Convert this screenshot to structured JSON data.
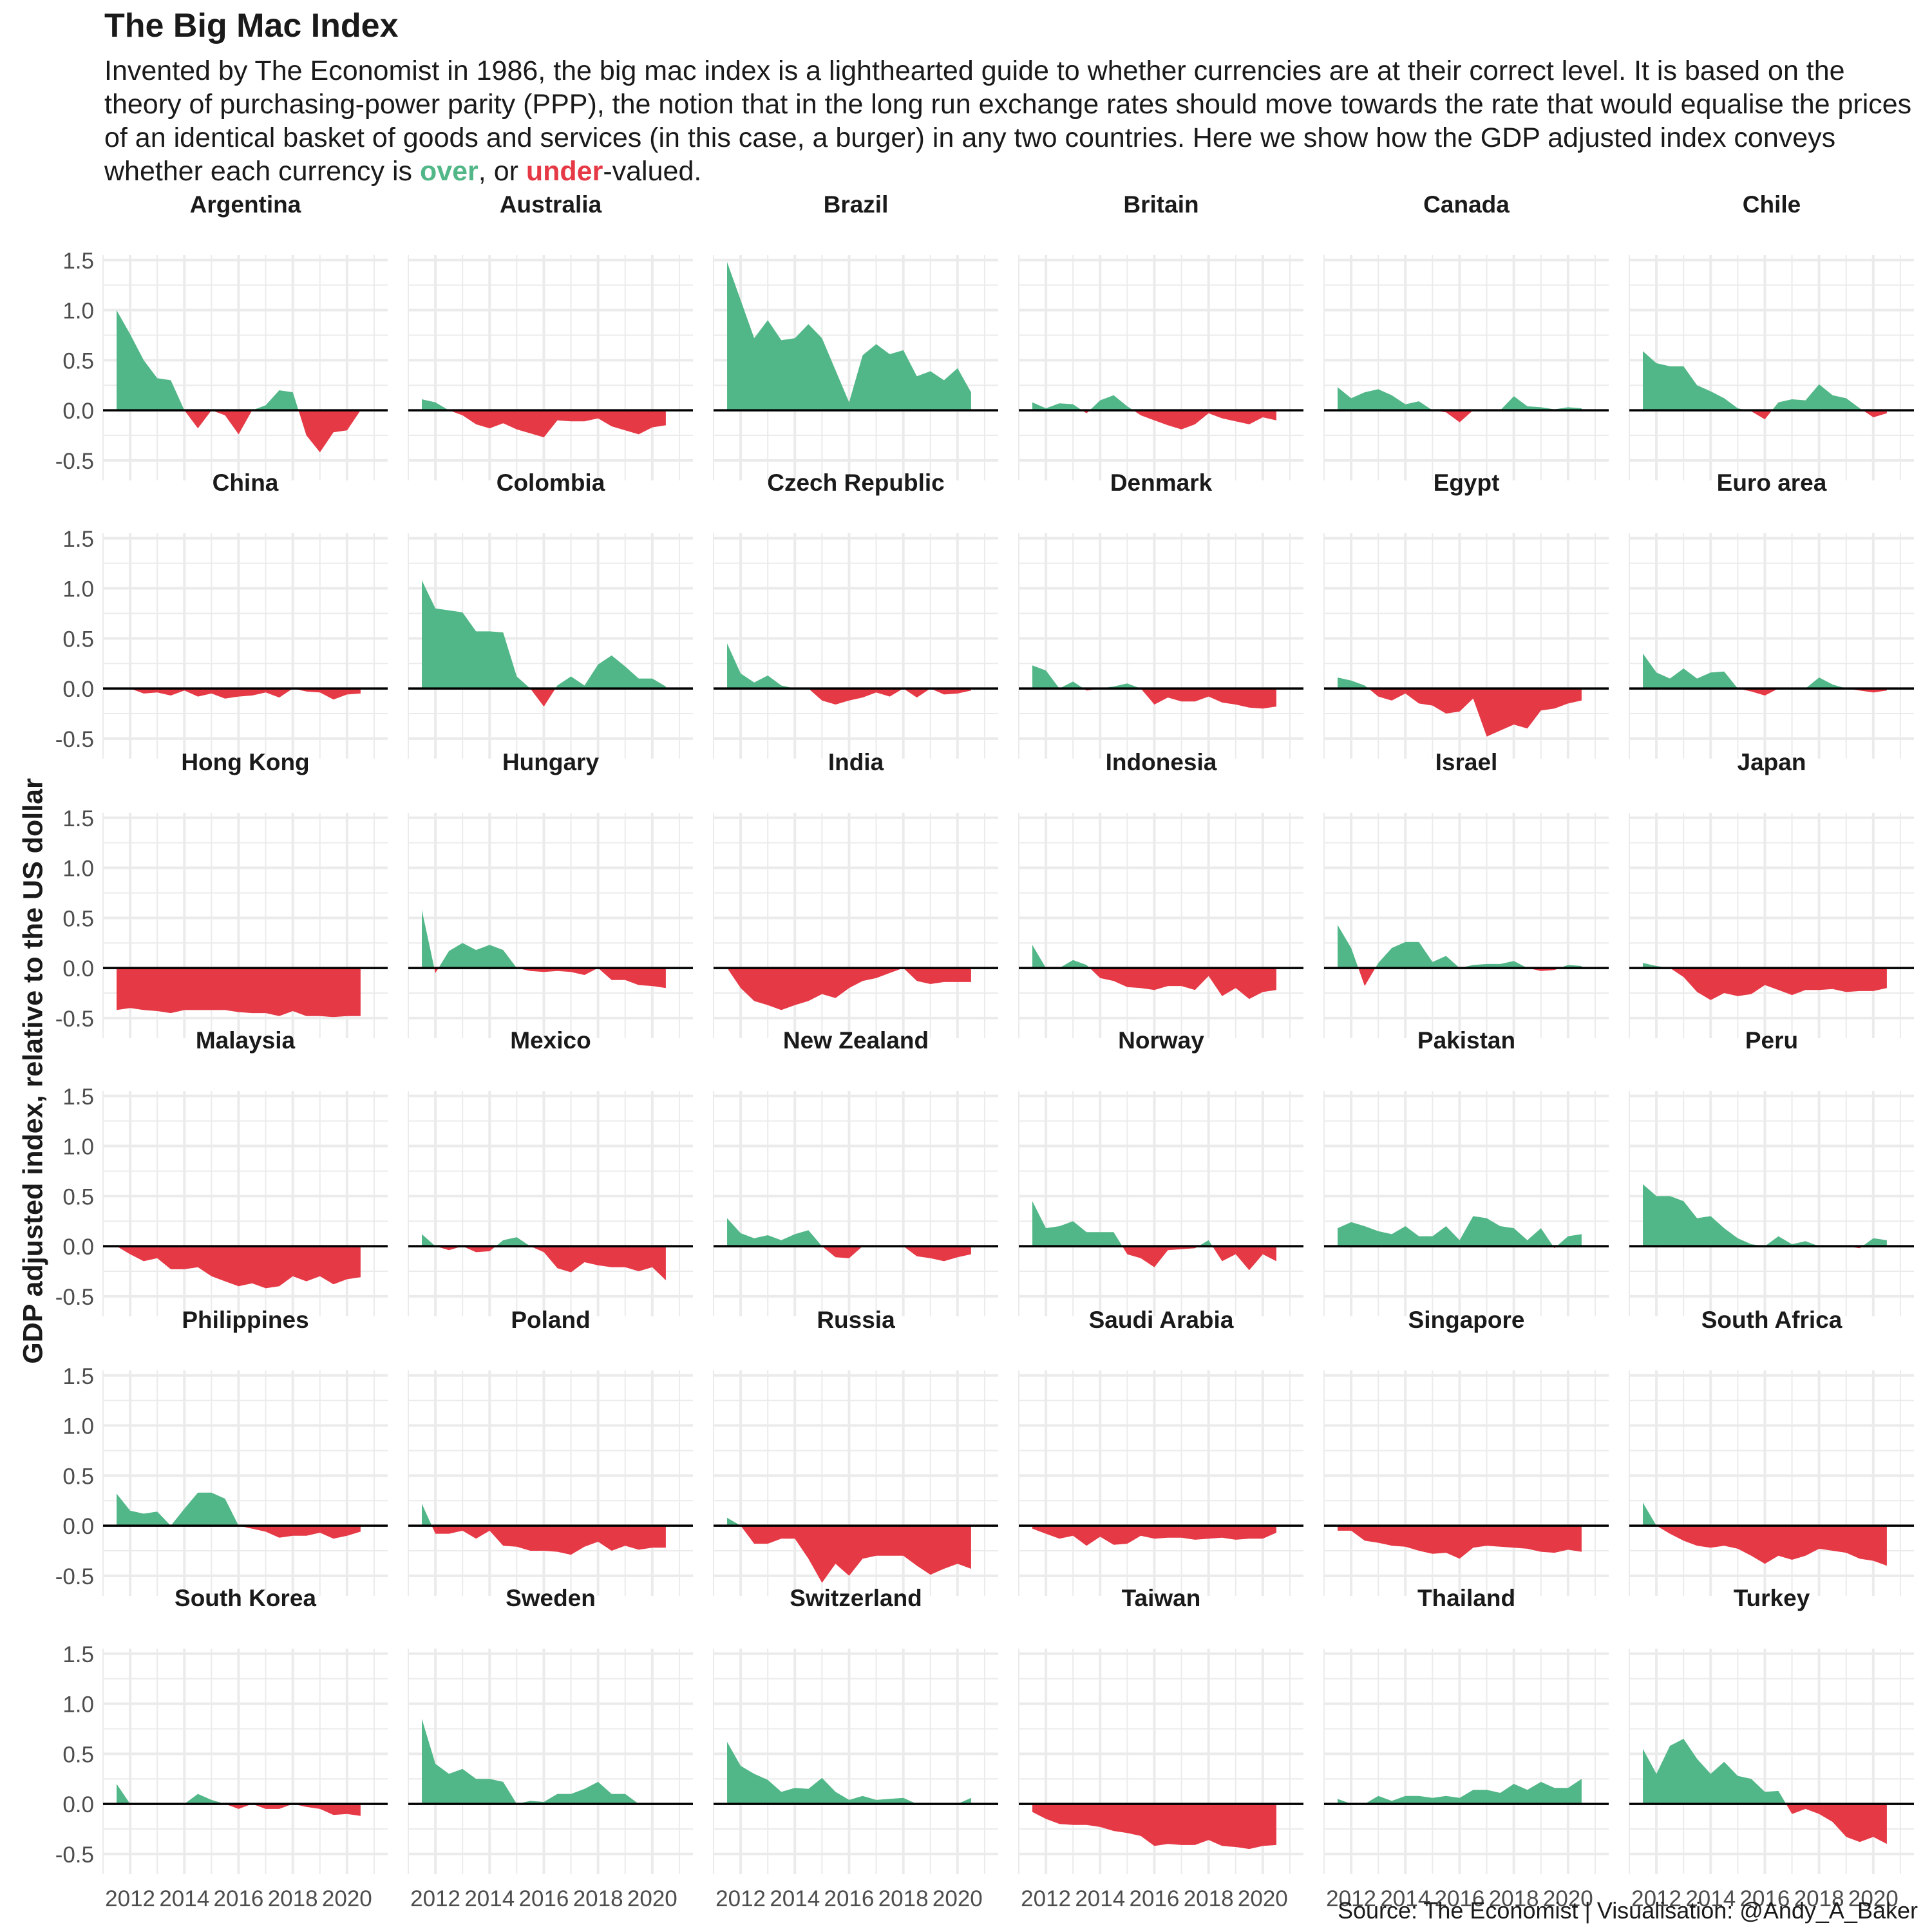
{
  "title": "The Big Mac Index",
  "subtitle": {
    "before": "Invented by The Economist in 1986, the big mac index is a lighthearted guide to whether currencies are at their correct level. It is based on the theory of purchasing-power parity (PPP), the notion that in the long run exchange rates should move towards the rate that would equalise the prices of an identical basket of goods and services (in this case, a burger) in any two countries. Here we show how the GDP adjusted index conveys whether each currency is ",
    "over": "over",
    "middle": ", or ",
    "under": "under",
    "after": "-valued."
  },
  "caption": "Source: The Economist | Visualisation: @Andy_A_Baker",
  "colors": {
    "over": "#52b788",
    "under": "#e63946",
    "grid": "#ebebeb",
    "zero_line": "#000000",
    "text": "#1a1a1a",
    "tick_text": "#4d4d4d"
  },
  "chart_data": {
    "type": "area",
    "facet": "wrap",
    "ylabel": "GDP adjusted index, relative to the US dollar",
    "xlabel": "",
    "xlim": [
      2011.0,
      2021.5
    ],
    "ylim": [
      -0.7,
      1.55
    ],
    "x_ticks": [
      2012,
      2014,
      2016,
      2018,
      2020
    ],
    "y_ticks": [
      -0.5,
      0.0,
      0.5,
      1.0,
      1.5
    ],
    "y_tick_labels": [
      "-0.5",
      "0.0",
      "0.5",
      "1.0",
      "1.5"
    ],
    "grid": true,
    "x": [
      2011.5,
      2012.0,
      2012.5,
      2013.0,
      2013.5,
      2014.0,
      2014.5,
      2015.0,
      2015.5,
      2016.0,
      2016.5,
      2017.0,
      2017.5,
      2018.0,
      2018.5,
      2019.0,
      2019.5,
      2020.0,
      2020.5
    ],
    "series": [
      {
        "name": "Argentina",
        "values": [
          1.0,
          0.76,
          0.5,
          0.32,
          0.3,
          0.0,
          -0.18,
          0.0,
          -0.05,
          -0.24,
          0.0,
          0.05,
          0.2,
          0.18,
          -0.25,
          -0.42,
          -0.22,
          -0.2,
          0.0
        ]
      },
      {
        "name": "Australia",
        "values": [
          0.11,
          0.08,
          0.0,
          -0.05,
          -0.14,
          -0.18,
          -0.13,
          -0.19,
          -0.23,
          -0.27,
          -0.1,
          -0.11,
          -0.11,
          -0.08,
          -0.16,
          -0.2,
          -0.24,
          -0.17,
          -0.15
        ]
      },
      {
        "name": "Brazil",
        "values": [
          1.48,
          1.1,
          0.72,
          0.9,
          0.7,
          0.72,
          0.86,
          0.72,
          0.4,
          0.08,
          0.55,
          0.66,
          0.56,
          0.6,
          0.34,
          0.39,
          0.3,
          0.42,
          0.18
        ]
      },
      {
        "name": "Britain",
        "values": [
          0.08,
          0.02,
          0.07,
          0.06,
          -0.03,
          0.1,
          0.15,
          0.04,
          -0.05,
          -0.1,
          -0.15,
          -0.19,
          -0.14,
          -0.03,
          -0.08,
          -0.11,
          -0.14,
          -0.07,
          -0.1
        ]
      },
      {
        "name": "Canada",
        "values": [
          0.23,
          0.12,
          0.18,
          0.21,
          0.15,
          0.06,
          0.09,
          0.0,
          -0.02,
          -0.12,
          0.0,
          0.0,
          0.0,
          0.14,
          0.04,
          0.03,
          0.01,
          0.03,
          0.02
        ]
      },
      {
        "name": "Chile",
        "values": [
          0.59,
          0.47,
          0.44,
          0.44,
          0.25,
          0.19,
          0.12,
          0.02,
          -0.01,
          -0.09,
          0.08,
          0.11,
          0.1,
          0.26,
          0.15,
          0.12,
          0.02,
          -0.07,
          -0.03
        ]
      },
      {
        "name": "China",
        "values": [
          0.0,
          0.0,
          -0.05,
          -0.04,
          -0.07,
          -0.02,
          -0.08,
          -0.05,
          -0.1,
          -0.08,
          -0.07,
          -0.04,
          -0.09,
          0.0,
          -0.03,
          -0.04,
          -0.11,
          -0.06,
          -0.05
        ]
      },
      {
        "name": "Colombia",
        "values": [
          1.08,
          0.8,
          0.78,
          0.76,
          0.57,
          0.57,
          0.56,
          0.12,
          0.0,
          -0.18,
          0.03,
          0.12,
          0.03,
          0.24,
          0.33,
          0.22,
          0.1,
          0.1,
          0.02
        ]
      },
      {
        "name": "Czech Republic",
        "values": [
          0.45,
          0.15,
          0.06,
          0.13,
          0.03,
          0.0,
          0.0,
          -0.12,
          -0.16,
          -0.12,
          -0.09,
          -0.04,
          -0.08,
          0.0,
          -0.09,
          0.0,
          -0.06,
          -0.05,
          -0.02
        ]
      },
      {
        "name": "Denmark",
        "values": [
          0.23,
          0.18,
          0.0,
          0.07,
          -0.02,
          0.0,
          0.02,
          0.05,
          0.0,
          -0.16,
          -0.09,
          -0.13,
          -0.13,
          -0.08,
          -0.14,
          -0.16,
          -0.19,
          -0.2,
          -0.18
        ]
      },
      {
        "name": "Egypt",
        "values": [
          0.11,
          0.08,
          0.03,
          -0.08,
          -0.12,
          -0.05,
          -0.15,
          -0.17,
          -0.25,
          -0.23,
          -0.1,
          -0.48,
          -0.42,
          -0.36,
          -0.4,
          -0.22,
          -0.2,
          -0.15,
          -0.12
        ]
      },
      {
        "name": "Euro area",
        "values": [
          0.35,
          0.16,
          0.1,
          0.2,
          0.1,
          0.16,
          0.17,
          0.0,
          -0.03,
          -0.07,
          0.0,
          0.0,
          0.0,
          0.11,
          0.04,
          0.0,
          -0.02,
          -0.04,
          -0.02
        ]
      },
      {
        "name": "Hong Kong",
        "values": [
          -0.42,
          -0.4,
          -0.42,
          -0.43,
          -0.45,
          -0.42,
          -0.42,
          -0.42,
          -0.42,
          -0.44,
          -0.45,
          -0.45,
          -0.48,
          -0.43,
          -0.48,
          -0.48,
          -0.49,
          -0.48,
          -0.48
        ]
      },
      {
        "name": "Hungary",
        "values": [
          0.58,
          -0.05,
          0.17,
          0.25,
          0.18,
          0.23,
          0.18,
          0.0,
          -0.03,
          -0.04,
          -0.03,
          -0.04,
          -0.07,
          0.0,
          -0.12,
          -0.12,
          -0.17,
          -0.18,
          -0.2
        ]
      },
      {
        "name": "India",
        "values": [
          0.0,
          -0.2,
          -0.33,
          -0.37,
          -0.42,
          -0.37,
          -0.33,
          -0.26,
          -0.3,
          -0.2,
          -0.13,
          -0.1,
          -0.05,
          0.0,
          -0.13,
          -0.16,
          -0.14,
          -0.14,
          -0.14
        ]
      },
      {
        "name": "Indonesia",
        "values": [
          0.23,
          0.0,
          0.0,
          0.08,
          0.03,
          -0.1,
          -0.13,
          -0.19,
          -0.2,
          -0.22,
          -0.18,
          -0.18,
          -0.22,
          -0.08,
          -0.28,
          -0.2,
          -0.31,
          -0.24,
          -0.22
        ]
      },
      {
        "name": "Israel",
        "values": [
          0.43,
          0.2,
          -0.18,
          0.05,
          0.2,
          0.26,
          0.26,
          0.06,
          0.12,
          0.0,
          0.03,
          0.04,
          0.04,
          0.07,
          0.0,
          -0.03,
          -0.02,
          0.03,
          0.02
        ]
      },
      {
        "name": "Japan",
        "values": [
          0.05,
          0.02,
          0.0,
          -0.09,
          -0.24,
          -0.32,
          -0.25,
          -0.28,
          -0.26,
          -0.17,
          -0.22,
          -0.27,
          -0.22,
          -0.22,
          -0.21,
          -0.24,
          -0.23,
          -0.23,
          -0.2
        ]
      },
      {
        "name": "Malaysia",
        "values": [
          0.0,
          -0.08,
          -0.15,
          -0.12,
          -0.23,
          -0.23,
          -0.21,
          -0.3,
          -0.35,
          -0.4,
          -0.37,
          -0.42,
          -0.4,
          -0.3,
          -0.35,
          -0.3,
          -0.38,
          -0.33,
          -0.31
        ]
      },
      {
        "name": "Mexico",
        "values": [
          0.12,
          0.0,
          -0.04,
          0.0,
          -0.06,
          -0.05,
          0.06,
          0.09,
          0.0,
          -0.06,
          -0.22,
          -0.26,
          -0.16,
          -0.19,
          -0.21,
          -0.21,
          -0.25,
          -0.21,
          -0.34
        ]
      },
      {
        "name": "New Zealand",
        "values": [
          0.28,
          0.13,
          0.08,
          0.11,
          0.06,
          0.12,
          0.16,
          0.0,
          -0.11,
          -0.12,
          0.0,
          0.0,
          0.0,
          0.0,
          -0.1,
          -0.12,
          -0.15,
          -0.11,
          -0.08
        ]
      },
      {
        "name": "Norway",
        "values": [
          0.45,
          0.18,
          0.2,
          0.25,
          0.14,
          0.14,
          0.14,
          -0.08,
          -0.12,
          -0.21,
          -0.04,
          -0.03,
          -0.02,
          0.06,
          -0.15,
          -0.08,
          -0.24,
          -0.08,
          -0.15
        ]
      },
      {
        "name": "Pakistan",
        "values": [
          0.18,
          0.24,
          0.2,
          0.15,
          0.12,
          0.2,
          0.1,
          0.1,
          0.2,
          0.06,
          0.3,
          0.28,
          0.2,
          0.18,
          0.06,
          0.18,
          -0.02,
          0.1,
          0.12
        ]
      },
      {
        "name": "Peru",
        "values": [
          0.62,
          0.5,
          0.5,
          0.45,
          0.28,
          0.3,
          0.18,
          0.08,
          0.02,
          0.0,
          0.1,
          0.02,
          0.05,
          0.0,
          0.0,
          0.0,
          -0.02,
          0.08,
          0.06
        ]
      },
      {
        "name": "Philippines",
        "values": [
          0.32,
          0.15,
          0.12,
          0.14,
          0.0,
          0.17,
          0.33,
          0.33,
          0.27,
          0.0,
          -0.03,
          -0.06,
          -0.12,
          -0.1,
          -0.1,
          -0.07,
          -0.13,
          -0.1,
          -0.06
        ]
      },
      {
        "name": "Poland",
        "values": [
          0.22,
          -0.08,
          -0.08,
          -0.05,
          -0.13,
          -0.05,
          -0.2,
          -0.21,
          -0.25,
          -0.25,
          -0.26,
          -0.29,
          -0.21,
          -0.16,
          -0.25,
          -0.2,
          -0.24,
          -0.22,
          -0.22
        ]
      },
      {
        "name": "Russia",
        "values": [
          0.08,
          0.0,
          -0.18,
          -0.18,
          -0.13,
          -0.13,
          -0.33,
          -0.57,
          -0.38,
          -0.5,
          -0.33,
          -0.3,
          -0.3,
          -0.3,
          -0.4,
          -0.49,
          -0.43,
          -0.38,
          -0.43
        ]
      },
      {
        "name": "Saudi Arabia",
        "values": [
          -0.03,
          -0.08,
          -0.13,
          -0.1,
          -0.2,
          -0.11,
          -0.19,
          -0.18,
          -0.1,
          -0.13,
          -0.12,
          -0.12,
          -0.14,
          -0.13,
          -0.12,
          -0.14,
          -0.13,
          -0.13,
          -0.07
        ]
      },
      {
        "name": "Singapore",
        "values": [
          -0.05,
          -0.05,
          -0.15,
          -0.17,
          -0.2,
          -0.21,
          -0.25,
          -0.28,
          -0.27,
          -0.33,
          -0.22,
          -0.2,
          -0.21,
          -0.22,
          -0.23,
          -0.26,
          -0.27,
          -0.24,
          -0.26
        ]
      },
      {
        "name": "South Africa",
        "values": [
          0.23,
          0.0,
          -0.08,
          -0.15,
          -0.2,
          -0.22,
          -0.2,
          -0.23,
          -0.3,
          -0.38,
          -0.3,
          -0.34,
          -0.3,
          -0.23,
          -0.25,
          -0.27,
          -0.33,
          -0.35,
          -0.4
        ]
      },
      {
        "name": "South Korea",
        "values": [
          0.2,
          0.0,
          0.0,
          0.0,
          0.0,
          0.0,
          0.1,
          0.04,
          0.0,
          -0.05,
          0.0,
          -0.05,
          -0.05,
          0.0,
          -0.03,
          -0.05,
          -0.11,
          -0.1,
          -0.12
        ]
      },
      {
        "name": "Sweden",
        "values": [
          0.85,
          0.4,
          0.3,
          0.35,
          0.25,
          0.25,
          0.22,
          0.0,
          0.03,
          0.02,
          0.1,
          0.1,
          0.15,
          0.22,
          0.1,
          0.1,
          0.0,
          0.0,
          0.0
        ]
      },
      {
        "name": "Switzerland",
        "values": [
          0.62,
          0.38,
          0.3,
          0.24,
          0.12,
          0.16,
          0.15,
          0.26,
          0.12,
          0.04,
          0.08,
          0.04,
          0.05,
          0.06,
          0.0,
          0.0,
          0.0,
          0.0,
          0.06
        ]
      },
      {
        "name": "Taiwan",
        "values": [
          -0.08,
          -0.15,
          -0.2,
          -0.21,
          -0.21,
          -0.23,
          -0.27,
          -0.29,
          -0.32,
          -0.42,
          -0.4,
          -0.41,
          -0.41,
          -0.36,
          -0.42,
          -0.43,
          -0.45,
          -0.42,
          -0.41
        ]
      },
      {
        "name": "Thailand",
        "values": [
          0.05,
          0.0,
          0.0,
          0.08,
          0.03,
          0.08,
          0.08,
          0.06,
          0.08,
          0.06,
          0.14,
          0.14,
          0.11,
          0.2,
          0.14,
          0.22,
          0.16,
          0.16,
          0.25
        ]
      },
      {
        "name": "Turkey",
        "values": [
          0.55,
          0.3,
          0.58,
          0.65,
          0.45,
          0.3,
          0.42,
          0.28,
          0.25,
          0.12,
          0.13,
          -0.1,
          -0.05,
          -0.1,
          -0.18,
          -0.33,
          -0.38,
          -0.33,
          -0.4
        ]
      }
    ]
  }
}
